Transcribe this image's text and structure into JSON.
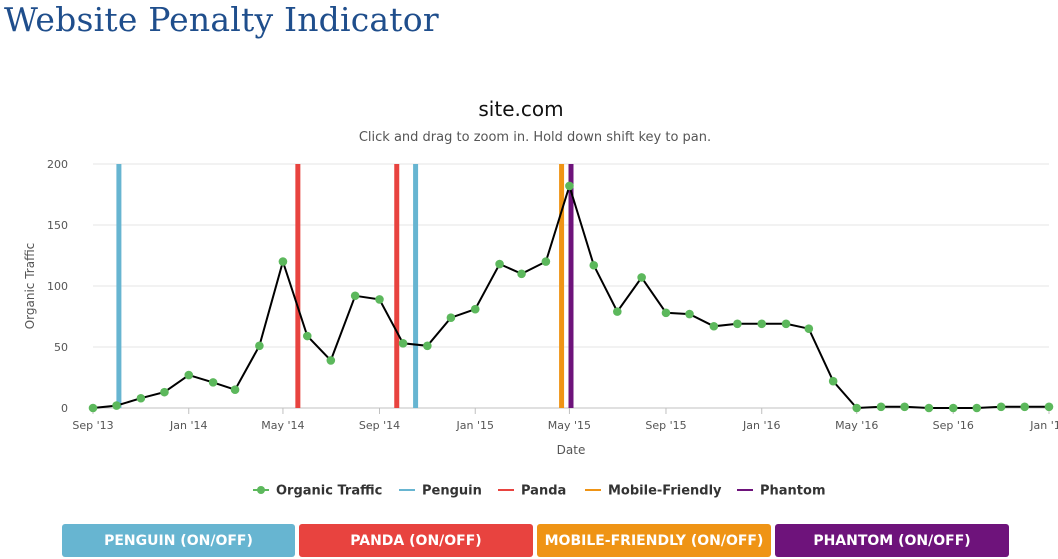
{
  "page": {
    "title": "Website Penalty Indicator"
  },
  "buttons": {
    "penguin": "PENGUIN (ON/OFF)",
    "panda": "PANDA (ON/OFF)",
    "mobile": "MOBILE-FRIENDLY (ON/OFF)",
    "phantom": "PHANTOM (ON/OFF)"
  },
  "chart_data": {
    "type": "line",
    "title": "site.com",
    "subtitle": "Click and drag to zoom in. Hold down shift key to pan.",
    "xlabel": "Date",
    "ylabel": "Organic Traffic",
    "xlim": [
      "2013-09-01",
      "2017-01-01"
    ],
    "ylim": [
      0,
      200
    ],
    "yticks": [
      0,
      50,
      100,
      150,
      200
    ],
    "xticks": [
      {
        "date": "2013-09-01",
        "label": "Sep '13"
      },
      {
        "date": "2014-01-01",
        "label": "Jan '14"
      },
      {
        "date": "2014-05-01",
        "label": "May '14"
      },
      {
        "date": "2014-09-01",
        "label": "Sep '14"
      },
      {
        "date": "2015-01-01",
        "label": "Jan '15"
      },
      {
        "date": "2015-05-01",
        "label": "May '15"
      },
      {
        "date": "2015-09-01",
        "label": "Sep '15"
      },
      {
        "date": "2016-01-01",
        "label": "Jan '16"
      },
      {
        "date": "2016-05-01",
        "label": "May '16"
      },
      {
        "date": "2016-09-01",
        "label": "Sep '16"
      },
      {
        "date": "2017-01-01",
        "label": "Jan '17"
      }
    ],
    "grid": true,
    "legend_position": "bottom-center",
    "series": [
      {
        "name": "Organic Traffic",
        "color": "#5cb85c",
        "points": [
          [
            "2013-09-01",
            0
          ],
          [
            "2013-10-01",
            2
          ],
          [
            "2013-11-01",
            8
          ],
          [
            "2013-12-01",
            13
          ],
          [
            "2014-01-01",
            27
          ],
          [
            "2014-02-01",
            21
          ],
          [
            "2014-03-01",
            15
          ],
          [
            "2014-04-01",
            51
          ],
          [
            "2014-05-01",
            120
          ],
          [
            "2014-06-01",
            59
          ],
          [
            "2014-07-01",
            39
          ],
          [
            "2014-08-01",
            92
          ],
          [
            "2014-09-01",
            89
          ],
          [
            "2014-10-01",
            53
          ],
          [
            "2014-11-01",
            51
          ],
          [
            "2014-12-01",
            74
          ],
          [
            "2015-01-01",
            81
          ],
          [
            "2015-02-01",
            118
          ],
          [
            "2015-03-01",
            110
          ],
          [
            "2015-04-01",
            120
          ],
          [
            "2015-05-01",
            182
          ],
          [
            "2015-06-01",
            117
          ],
          [
            "2015-07-01",
            79
          ],
          [
            "2015-08-01",
            107
          ],
          [
            "2015-09-01",
            78
          ],
          [
            "2015-10-01",
            77
          ],
          [
            "2015-11-01",
            67
          ],
          [
            "2015-12-01",
            69
          ],
          [
            "2016-01-01",
            69
          ],
          [
            "2016-02-01",
            69
          ],
          [
            "2016-03-01",
            65
          ],
          [
            "2016-04-01",
            22
          ],
          [
            "2016-05-01",
            0
          ],
          [
            "2016-06-01",
            1
          ],
          [
            "2016-07-01",
            1
          ],
          [
            "2016-08-01",
            0
          ],
          [
            "2016-09-01",
            0
          ],
          [
            "2016-10-01",
            0
          ],
          [
            "2016-11-01",
            1
          ],
          [
            "2016-12-01",
            1
          ],
          [
            "2017-01-01",
            1
          ]
        ]
      }
    ],
    "penalties": [
      {
        "name": "Penguin",
        "color": "#67b5d1",
        "dates": [
          "2013-10-04",
          "2014-10-17"
        ]
      },
      {
        "name": "Panda",
        "color": "#e8433f",
        "dates": [
          "2014-05-20",
          "2014-09-23"
        ]
      },
      {
        "name": "Mobile-Friendly",
        "color": "#ef9415",
        "dates": [
          "2015-04-21"
        ]
      },
      {
        "name": "Phantom",
        "color": "#6e137b",
        "dates": [
          "2015-05-03"
        ]
      }
    ]
  }
}
